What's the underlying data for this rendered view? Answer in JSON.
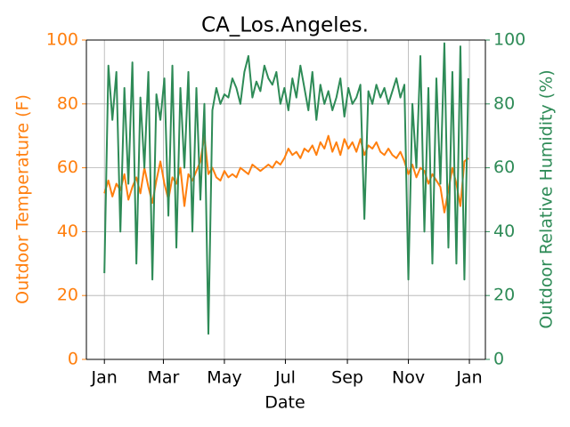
{
  "chart_data": {
    "type": "line",
    "title": "CA_Los.Angeles.",
    "xlabel": "Date",
    "ylabel": "Outdoor Temperature (F)",
    "y2label": "Outdoor Relative Humidity (%)",
    "x": [
      0,
      4,
      8,
      12,
      16,
      20,
      24,
      28,
      32,
      36,
      40,
      44,
      48,
      52,
      56,
      60,
      64,
      68,
      72,
      76,
      80,
      84,
      88,
      92,
      96,
      100,
      104,
      108,
      112,
      116,
      120,
      124,
      128,
      132,
      136,
      140,
      144,
      148,
      152,
      156,
      160,
      164,
      168,
      172,
      176,
      180,
      184,
      188,
      192,
      196,
      200,
      204,
      208,
      212,
      216,
      220,
      224,
      228,
      232,
      236,
      240,
      244,
      248,
      252,
      256,
      260,
      264,
      268,
      272,
      276,
      280,
      284,
      288,
      292,
      296,
      300,
      304,
      308,
      312,
      316,
      320,
      324,
      328,
      332,
      336,
      340,
      344,
      348,
      352,
      356,
      360,
      364
    ],
    "xlim": [
      -18,
      381
    ],
    "xticks": [
      {
        "value": 0,
        "label": "Jan"
      },
      {
        "value": 59,
        "label": "Mar"
      },
      {
        "value": 120,
        "label": "May"
      },
      {
        "value": 181,
        "label": "Jul"
      },
      {
        "value": 243,
        "label": "Sep"
      },
      {
        "value": 304,
        "label": "Nov"
      },
      {
        "value": 365,
        "label": "Jan"
      }
    ],
    "ylim": [
      0,
      100
    ],
    "yticks": [
      0,
      20,
      40,
      60,
      80,
      100
    ],
    "y2lim": [
      0,
      100
    ],
    "y2ticks": [
      0,
      20,
      40,
      60,
      80,
      100
    ],
    "grid": true,
    "series": [
      {
        "color": "#ff7f0e",
        "axis": "y",
        "values": [
          52,
          56,
          51,
          55,
          53,
          58,
          50,
          54,
          57,
          52,
          60,
          54,
          49,
          56,
          62,
          55,
          50,
          57,
          55,
          60,
          48,
          58,
          56,
          59,
          62,
          70,
          58,
          60,
          57,
          56,
          59,
          57,
          58,
          57,
          60,
          59,
          58,
          61,
          60,
          59,
          60,
          61,
          60,
          62,
          61,
          63,
          66,
          64,
          65,
          63,
          66,
          65,
          67,
          64,
          68,
          66,
          70,
          65,
          68,
          64,
          69,
          66,
          68,
          65,
          69,
          64,
          67,
          66,
          68,
          65,
          64,
          66,
          64,
          63,
          65,
          62,
          58,
          61,
          57,
          60,
          59,
          55,
          58,
          56,
          54,
          46,
          53,
          60,
          55,
          48,
          62,
          63
        ]
      },
      {
        "color": "#2e8b57",
        "axis": "y2",
        "values": [
          27,
          92,
          75,
          90,
          40,
          85,
          55,
          93,
          30,
          82,
          60,
          90,
          25,
          83,
          75,
          88,
          45,
          92,
          35,
          85,
          60,
          90,
          40,
          85,
          50,
          80,
          8,
          78,
          85,
          80,
          83,
          82,
          88,
          85,
          80,
          90,
          95,
          82,
          87,
          84,
          92,
          88,
          86,
          90,
          80,
          85,
          78,
          88,
          82,
          92,
          85,
          78,
          90,
          75,
          86,
          80,
          84,
          78,
          82,
          88,
          76,
          85,
          80,
          82,
          86,
          44,
          84,
          80,
          86,
          82,
          85,
          80,
          84,
          88,
          82,
          86,
          25,
          80,
          60,
          95,
          40,
          85,
          30,
          88,
          55,
          99,
          35,
          90,
          30,
          98,
          25,
          88
        ]
      }
    ]
  }
}
